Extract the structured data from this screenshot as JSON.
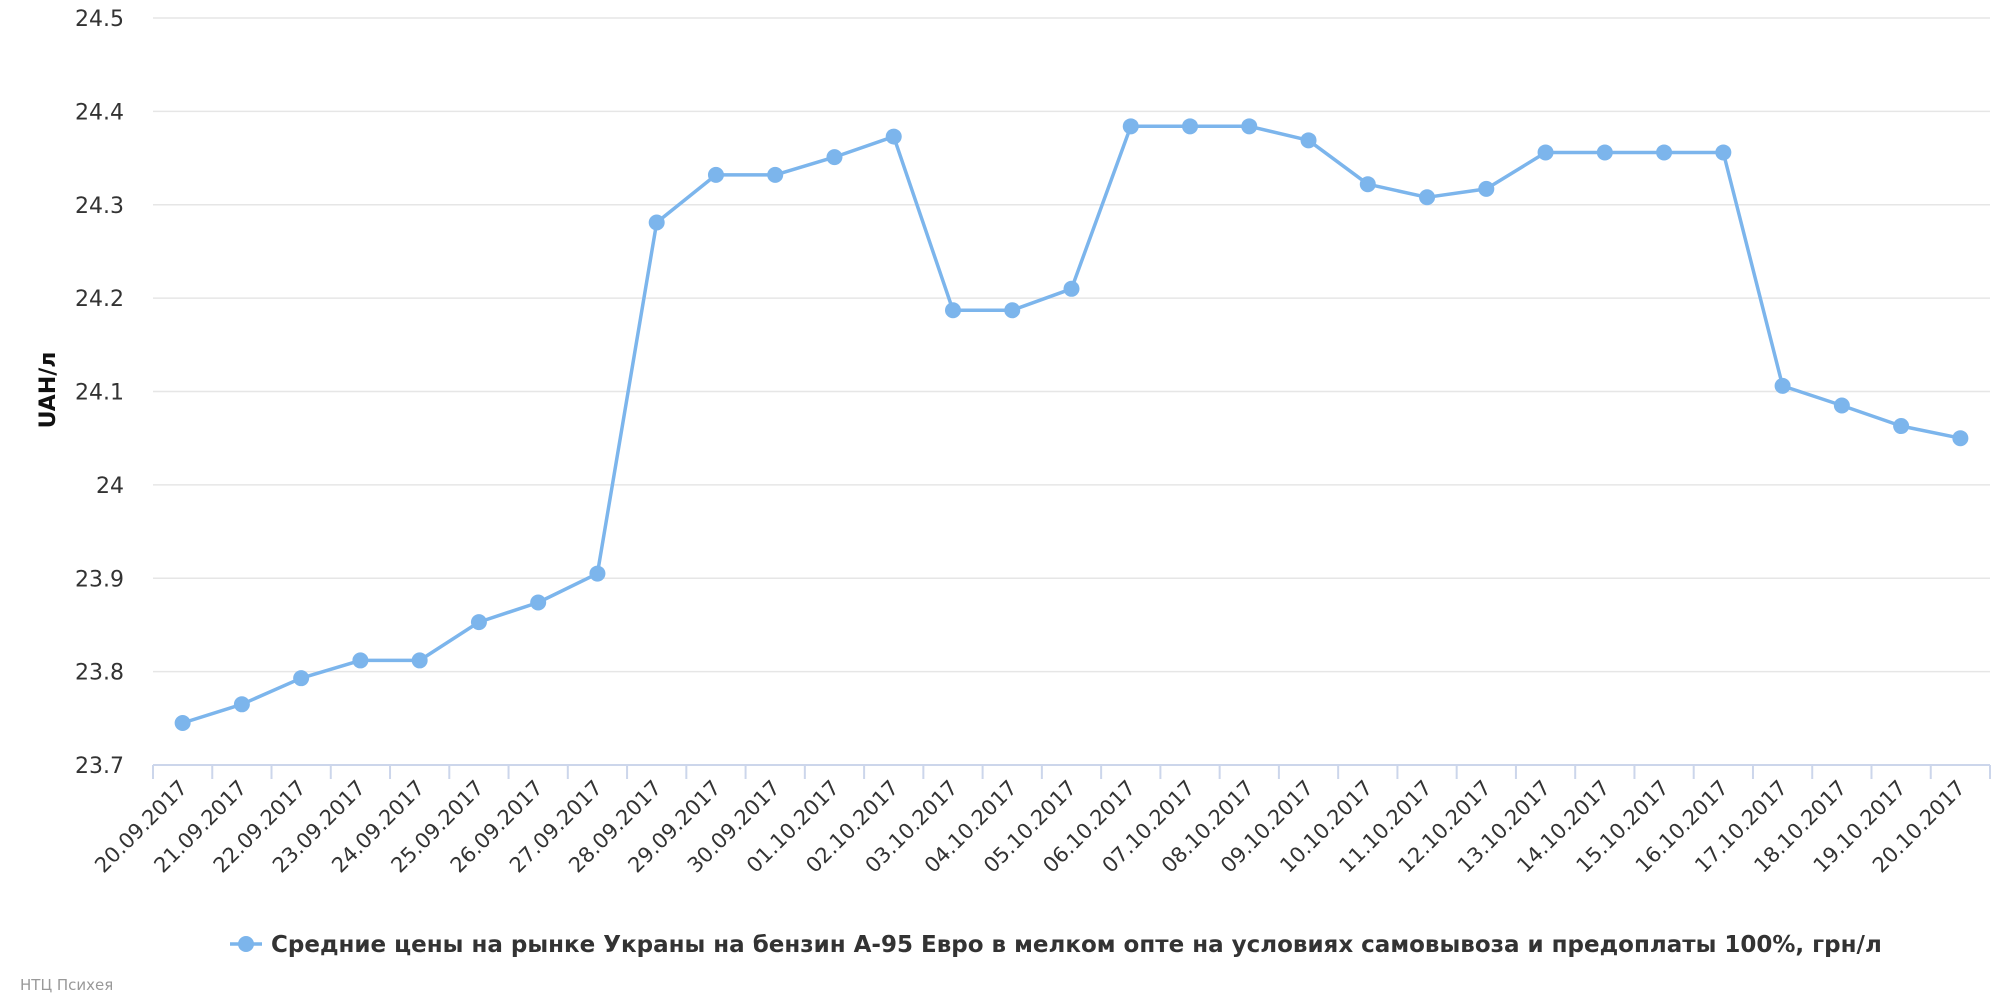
{
  "colors": {
    "series": "#7cb5ec",
    "grid": "#e6e6e6",
    "axis": "#ccd6eb",
    "text": "#333333",
    "credits": "#999999"
  },
  "credits": "НТЦ Психея",
  "chart_data": {
    "type": "line",
    "title": "",
    "xlabel": "",
    "ylabel": "UAH/л",
    "ylim": [
      23.7,
      24.5
    ],
    "yticks": [
      23.7,
      23.8,
      23.9,
      24.0,
      24.1,
      24.2,
      24.3,
      24.4,
      24.5
    ],
    "ytick_labels": [
      "23.7",
      "23.8",
      "23.9",
      "24",
      "24.1",
      "24.2",
      "24.3",
      "24.4",
      "24.5"
    ],
    "grid": true,
    "legend_position": "bottom-center",
    "categories": [
      "20.09.2017",
      "21.09.2017",
      "22.09.2017",
      "23.09.2017",
      "24.09.2017",
      "25.09.2017",
      "26.09.2017",
      "27.09.2017",
      "28.09.2017",
      "29.09.2017",
      "30.09.2017",
      "01.10.2017",
      "02.10.2017",
      "03.10.2017",
      "04.10.2017",
      "05.10.2017",
      "06.10.2017",
      "07.10.2017",
      "08.10.2017",
      "09.10.2017",
      "10.10.2017",
      "11.10.2017",
      "12.10.2017",
      "13.10.2017",
      "14.10.2017",
      "15.10.2017",
      "16.10.2017",
      "17.10.2017",
      "18.10.2017",
      "19.10.2017",
      "20.10.2017"
    ],
    "series": [
      {
        "name": "Средние цены на рынке Украны на бензин А-95 Евро в мелком опте на условиях самовывоза и предоплаты 100%, грн/л",
        "values": [
          23.745,
          23.765,
          23.793,
          23.812,
          23.812,
          23.853,
          23.874,
          23.905,
          24.281,
          24.332,
          24.332,
          24.351,
          24.373,
          24.187,
          24.187,
          24.21,
          24.384,
          24.384,
          24.384,
          24.369,
          24.322,
          24.308,
          24.317,
          24.356,
          24.356,
          24.356,
          24.356,
          24.106,
          24.085,
          24.063,
          24.05
        ]
      }
    ]
  }
}
